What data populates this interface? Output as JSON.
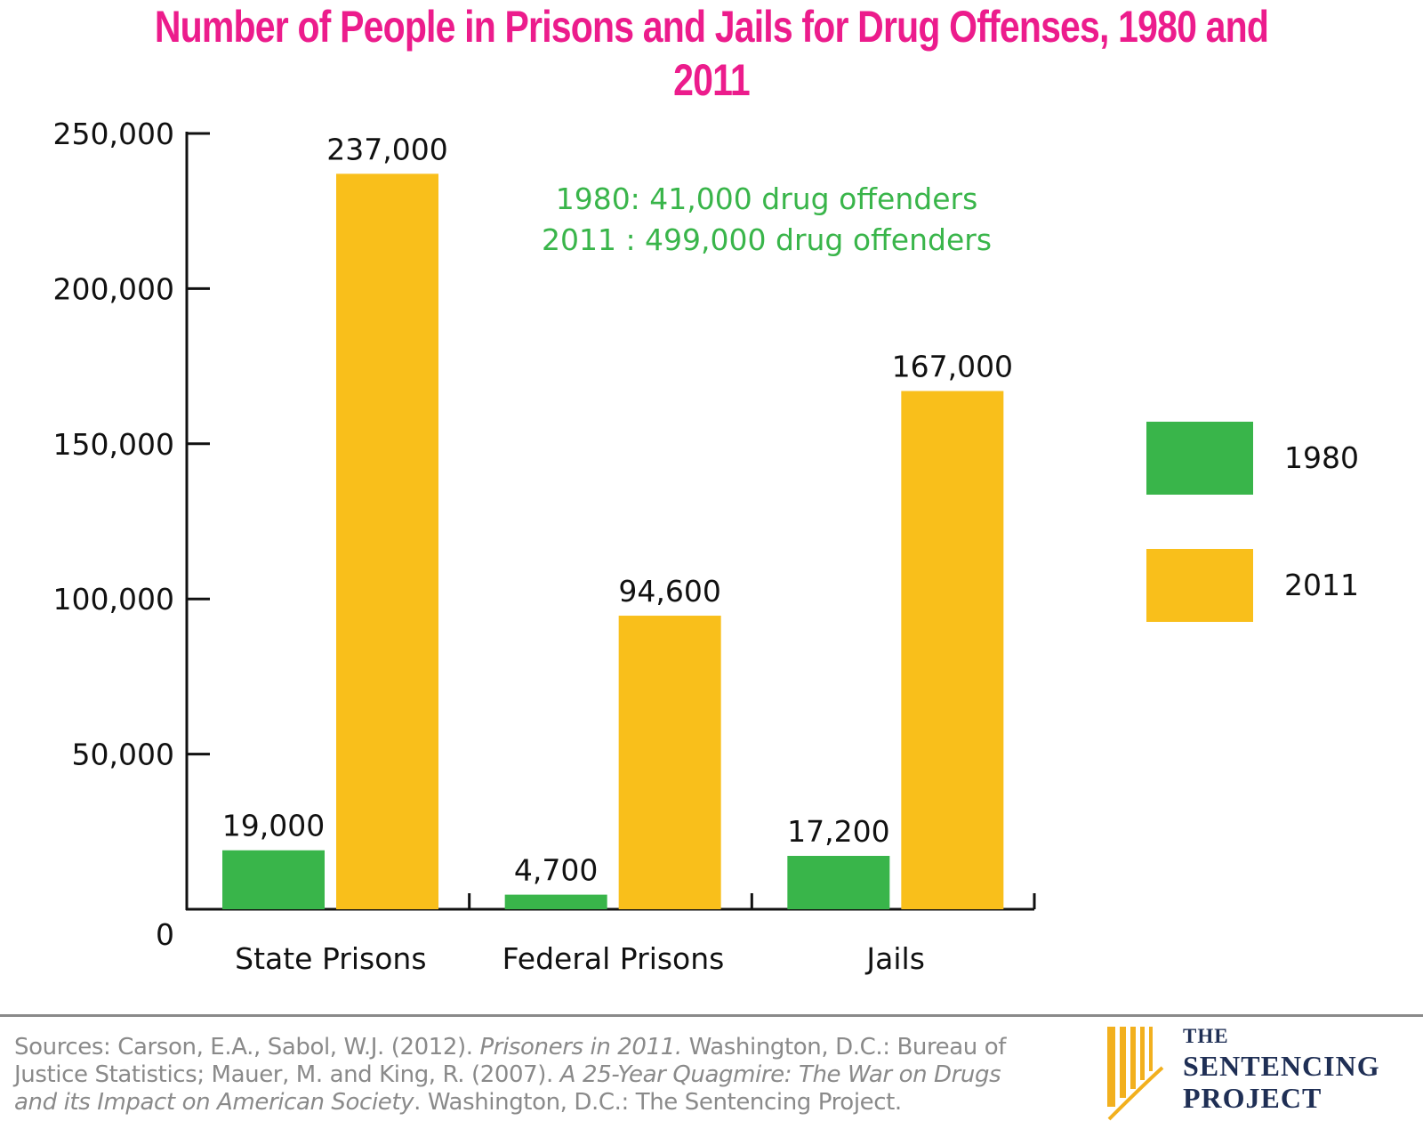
{
  "colors": {
    "title": "#ec1c8c",
    "series_1980": "#39b54a",
    "series_2011": "#f9bf1b",
    "annotation": "#39b54a",
    "axis": "#111111",
    "sources": "#8a8a8a",
    "logo_navy": "#1f2f55",
    "logo_gold": "#f2b01e"
  },
  "chart_data": {
    "type": "bar",
    "title": "Number of People in Prisons and Jails for Drug Offenses, 1980 and 2011",
    "categories": [
      "State Prisons",
      "Federal Prisons",
      "Jails"
    ],
    "series": [
      {
        "name": "1980",
        "values": [
          19000,
          4700,
          17200
        ],
        "labels": [
          "19,000",
          "4,700",
          "17,200"
        ]
      },
      {
        "name": "2011",
        "values": [
          237000,
          94600,
          167000
        ],
        "labels": [
          "237,000",
          "94,600",
          "167,000"
        ]
      }
    ],
    "yticks": [
      0,
      50000,
      100000,
      150000,
      200000,
      250000
    ],
    "ytick_labels": [
      "0",
      "50,000",
      "100,000",
      "150,000",
      "200,000",
      "250,000"
    ],
    "ylim": [
      0,
      250000
    ],
    "legend_placement": "right",
    "grid": false,
    "annotations": [
      "1980: 41,000 drug offenders",
      "2011 : 499,000 drug offenders"
    ]
  },
  "footer": {
    "sources_segments": [
      {
        "text": "Sources: Carson, E.A., Sabol, W.J. (2012). ",
        "italic": false
      },
      {
        "text": "Prisoners in 2011.",
        "italic": true
      },
      {
        "text": " Washington, D.C.: Bureau of Justice Statistics; Mauer, M. and King, R. (2007). ",
        "italic": false
      },
      {
        "text": "A 25-Year Quagmire: The War on Drugs and its Impact on American Society",
        "italic": true
      },
      {
        "text": ". Washington, D.C.: The Sentencing Project.",
        "italic": false
      }
    ]
  },
  "logo": {
    "line1": "THE",
    "line2": "SENTENCING",
    "line3": "PROJECT"
  }
}
